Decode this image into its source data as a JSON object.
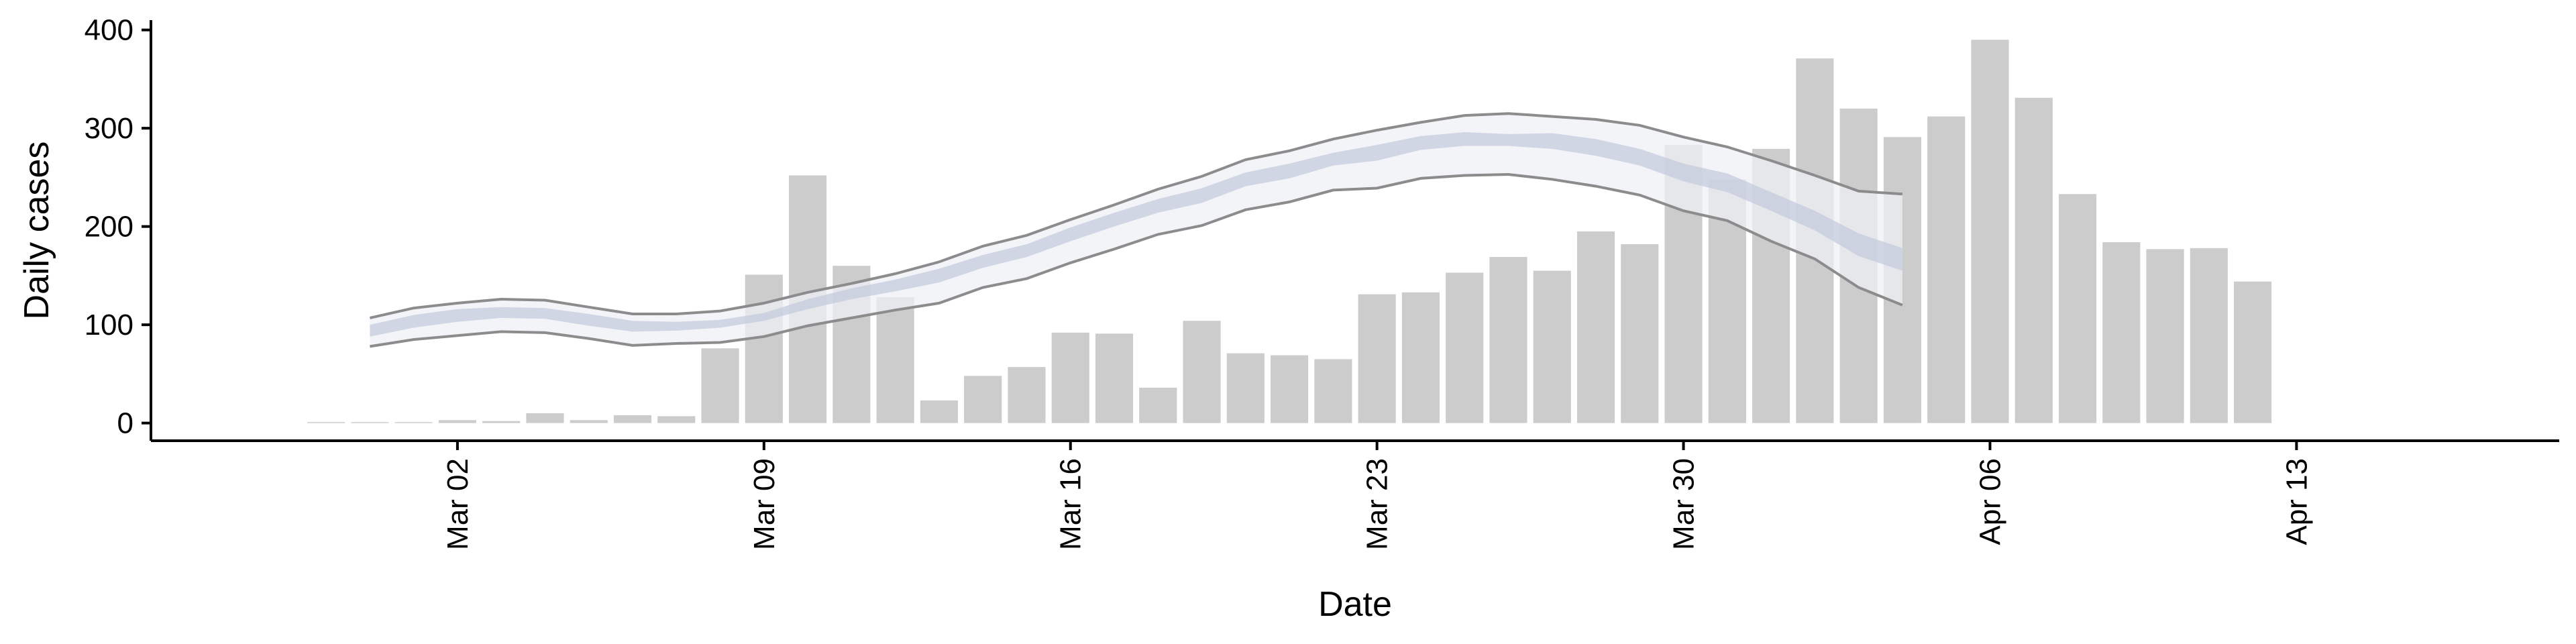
{
  "chart_data": {
    "type": "bar",
    "xlabel": "Date",
    "ylabel": "Daily cases",
    "ylim": [
      -18,
      410
    ],
    "xlim": [
      "2020-02-24",
      "2020-04-19"
    ],
    "grid": false,
    "legend": "none",
    "y_ticks": [
      0,
      100,
      200,
      300,
      400
    ],
    "x_ticks": [
      {
        "date": "2020-03-02",
        "label": "Mar 02"
      },
      {
        "date": "2020-03-09",
        "label": "Mar 09"
      },
      {
        "date": "2020-03-16",
        "label": "Mar 16"
      },
      {
        "date": "2020-03-23",
        "label": "Mar 23"
      },
      {
        "date": "2020-03-30",
        "label": "Mar 30"
      },
      {
        "date": "2020-04-06",
        "label": "Apr 06"
      },
      {
        "date": "2020-04-13",
        "label": "Apr 13"
      }
    ],
    "bar_color": "#cccccc",
    "band_colors": {
      "outer": "#eef0f6",
      "inner": "#c3c9dd",
      "line": "#8c8c8c"
    },
    "bars": {
      "start_date": "2020-02-28",
      "values": [
        1,
        1,
        1,
        3,
        2,
        10,
        3,
        8,
        7,
        76,
        151,
        252,
        160,
        128,
        23,
        48,
        57,
        92,
        91,
        36,
        104,
        71,
        69,
        65,
        131,
        133,
        153,
        169,
        155,
        195,
        182,
        283,
        248,
        279,
        371,
        320,
        291,
        312,
        390,
        331,
        233,
        184,
        177,
        178,
        144
      ]
    },
    "estimate": {
      "start_date": "2020-02-29",
      "lower_90": [
        78,
        85,
        89,
        93,
        92,
        86,
        79,
        81,
        82,
        88,
        99,
        107,
        115,
        122,
        138,
        147,
        163,
        177,
        192,
        201,
        217,
        225,
        237,
        239,
        249,
        252,
        253,
        248,
        241,
        232,
        216,
        206,
        185,
        167,
        138,
        120
      ],
      "lower_50": [
        88,
        97,
        103,
        107,
        106,
        99,
        93,
        94,
        97,
        104,
        116,
        126,
        134,
        143,
        158,
        169,
        185,
        200,
        214,
        224,
        241,
        249,
        262,
        267,
        278,
        282,
        282,
        279,
        272,
        262,
        246,
        235,
        216,
        196,
        170,
        155
      ],
      "median": [
        94,
        104,
        109,
        112,
        111,
        105,
        98,
        98,
        101,
        108,
        121,
        131,
        140,
        150,
        164,
        175,
        192,
        207,
        220,
        231,
        247,
        256,
        268,
        274,
        284,
        288,
        287,
        286,
        280,
        270,
        255,
        244,
        225,
        206,
        181,
        166
      ],
      "upper_50": [
        100,
        110,
        116,
        118,
        117,
        111,
        104,
        103,
        105,
        112,
        126,
        137,
        146,
        157,
        171,
        182,
        199,
        214,
        228,
        239,
        255,
        264,
        275,
        283,
        292,
        296,
        294,
        295,
        289,
        279,
        264,
        254,
        235,
        216,
        193,
        178
      ],
      "upper_90": [
        107,
        117,
        122,
        126,
        125,
        118,
        111,
        111,
        114,
        122,
        133,
        142,
        152,
        164,
        180,
        191,
        207,
        222,
        238,
        251,
        268,
        277,
        289,
        298,
        306,
        313,
        315,
        312,
        309,
        303,
        291,
        281,
        267,
        252,
        236,
        233
      ]
    }
  }
}
